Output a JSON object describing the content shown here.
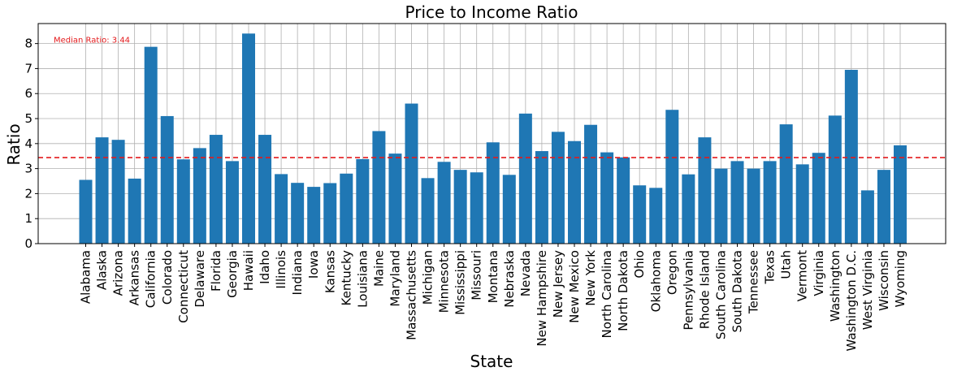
{
  "chart_data": {
    "type": "bar",
    "title": "Price to Income Ratio",
    "xlabel": "State",
    "ylabel": "Ratio",
    "ylim": [
      0,
      8.8
    ],
    "yticks": [
      0,
      1,
      2,
      3,
      4,
      5,
      6,
      7,
      8
    ],
    "grid": true,
    "bar_color": "#1f77b4",
    "categories": [
      "Alabama",
      "Alaska",
      "Arizona",
      "Arkansas",
      "California",
      "Colorado",
      "Connecticut",
      "Delaware",
      "Florida",
      "Georgia",
      "Hawaii",
      "Idaho",
      "Illinois",
      "Indiana",
      "Iowa",
      "Kansas",
      "Kentucky",
      "Louisiana",
      "Maine",
      "Maryland",
      "Massachusetts",
      "Michigan",
      "Minnesota",
      "Mississippi",
      "Missouri",
      "Montana",
      "Nebraska",
      "Nevada",
      "New Hampshire",
      "New Jersey",
      "New Mexico",
      "New York",
      "North Carolina",
      "North Dakota",
      "Ohio",
      "Oklahoma",
      "Oregon",
      "Pennsylvania",
      "Rhode Island",
      "South Carolina",
      "South Dakota",
      "Tennessee",
      "Texas",
      "Utah",
      "Vermont",
      "Virginia",
      "Washington",
      "Washington D.C.",
      "West Virginia",
      "Wisconsin",
      "Wyoming"
    ],
    "values": [
      2.55,
      4.25,
      4.15,
      2.6,
      7.87,
      5.1,
      3.37,
      3.82,
      4.35,
      3.3,
      8.4,
      4.35,
      2.78,
      2.43,
      2.27,
      2.42,
      2.8,
      3.38,
      4.5,
      3.6,
      5.6,
      2.62,
      3.27,
      2.95,
      2.85,
      4.05,
      2.75,
      5.2,
      3.7,
      4.47,
      4.1,
      4.75,
      3.65,
      3.45,
      2.33,
      2.23,
      5.35,
      2.77,
      4.25,
      3.0,
      3.3,
      3.0,
      3.3,
      4.77,
      3.17,
      3.63,
      5.12,
      6.95,
      2.13,
      2.95,
      3.93
    ],
    "reference_line": {
      "value": 3.44,
      "color": "#e41a1c",
      "style": "dashed",
      "annotation": "Median Ratio: 3.44"
    }
  }
}
